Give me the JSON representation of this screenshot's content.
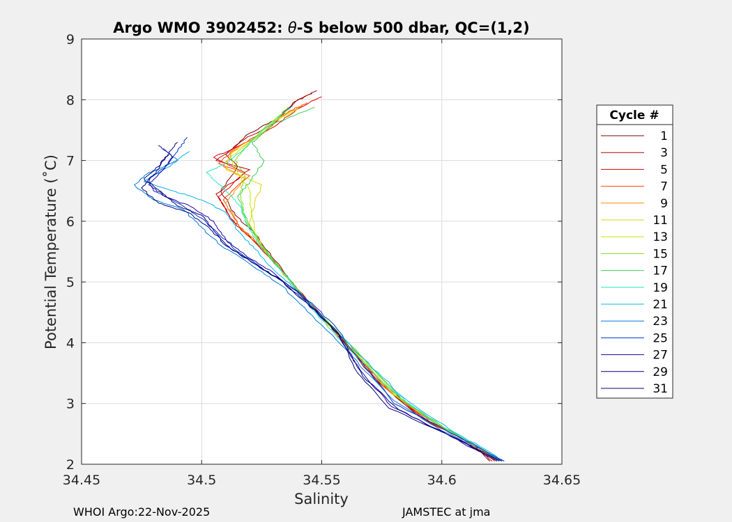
{
  "chart_data": {
    "type": "line",
    "title_prefix": "Argo WMO 3902452: ",
    "title_symbol": "θ",
    "title_suffix": "-S below 500 dbar,  QC=(1,2)",
    "xlabel": "Salinity",
    "ylabel": "Potential Temperature (˚C)",
    "xlim": [
      34.45,
      34.65
    ],
    "ylim": [
      2,
      9
    ],
    "xticks": [
      "34.45",
      "34.5",
      "34.55",
      "34.6",
      "34.65"
    ],
    "yticks": [
      "2",
      "3",
      "4",
      "5",
      "6",
      "7",
      "8",
      "9"
    ],
    "grid": true,
    "legend_placement": "outside-right",
    "legend_title": "Cycle #",
    "legend_entries": [
      "1",
      "3",
      "5",
      "7",
      "9",
      "11",
      "13",
      "15",
      "17",
      "19",
      "21",
      "23",
      "25",
      "27",
      "29",
      "31"
    ],
    "colors": [
      "#800000",
      "#b40000",
      "#e00000",
      "#ff3c00",
      "#ff8c00",
      "#e6d200",
      "#c8e600",
      "#7ddc14",
      "#3ccf50",
      "#20e6c8",
      "#00b4f0",
      "#0078dc",
      "#0032c8",
      "#1e00a0",
      "#000080",
      "#00007f"
    ],
    "series": [
      {
        "name": "1",
        "points": [
          [
            34.548,
            8.15
          ],
          [
            34.54,
            8.0
          ],
          [
            34.532,
            7.7
          ],
          [
            34.52,
            7.45
          ],
          [
            34.51,
            7.1
          ],
          [
            34.515,
            6.9
          ],
          [
            34.508,
            6.5
          ],
          [
            34.514,
            6.1
          ],
          [
            34.522,
            5.8
          ],
          [
            34.532,
            5.3
          ],
          [
            34.54,
            4.85
          ],
          [
            34.555,
            4.2
          ],
          [
            34.572,
            3.4
          ],
          [
            34.59,
            2.8
          ],
          [
            34.61,
            2.4
          ],
          [
            34.62,
            2.05
          ]
        ]
      },
      {
        "name": "3",
        "points": [
          [
            34.546,
            8.1
          ],
          [
            34.538,
            7.95
          ],
          [
            34.53,
            7.6
          ],
          [
            34.518,
            7.35
          ],
          [
            34.506,
            7.0
          ],
          [
            34.52,
            6.85
          ],
          [
            34.506,
            6.45
          ],
          [
            34.512,
            6.05
          ],
          [
            34.52,
            5.75
          ],
          [
            34.533,
            5.2
          ],
          [
            34.543,
            4.75
          ],
          [
            34.557,
            4.1
          ],
          [
            34.575,
            3.35
          ],
          [
            34.592,
            2.75
          ],
          [
            34.612,
            2.35
          ],
          [
            34.621,
            2.05
          ]
        ]
      },
      {
        "name": "5",
        "points": [
          [
            34.55,
            8.05
          ],
          [
            34.54,
            7.85
          ],
          [
            34.53,
            7.55
          ],
          [
            34.516,
            7.25
          ],
          [
            34.505,
            7.05
          ],
          [
            34.518,
            6.8
          ],
          [
            34.507,
            6.4
          ],
          [
            34.513,
            6.0
          ],
          [
            34.521,
            5.7
          ],
          [
            34.534,
            5.15
          ],
          [
            34.544,
            4.7
          ],
          [
            34.558,
            4.05
          ],
          [
            34.575,
            3.3
          ],
          [
            34.594,
            2.72
          ],
          [
            34.613,
            2.32
          ],
          [
            34.622,
            2.05
          ]
        ]
      },
      {
        "name": "7",
        "points": [
          [
            34.544,
            7.95
          ],
          [
            34.536,
            7.8
          ],
          [
            34.527,
            7.5
          ],
          [
            34.514,
            7.2
          ],
          [
            34.507,
            6.95
          ],
          [
            34.52,
            6.75
          ],
          [
            34.509,
            6.35
          ],
          [
            34.515,
            5.95
          ],
          [
            34.523,
            5.65
          ],
          [
            34.535,
            5.1
          ],
          [
            34.545,
            4.65
          ],
          [
            34.56,
            4.0
          ],
          [
            34.577,
            3.25
          ],
          [
            34.595,
            2.7
          ],
          [
            34.614,
            2.3
          ],
          [
            34.622,
            2.05
          ]
        ]
      },
      {
        "name": "9",
        "points": [
          [
            34.542,
            7.9
          ],
          [
            34.534,
            7.75
          ],
          [
            34.525,
            7.45
          ],
          [
            34.513,
            7.15
          ],
          [
            34.509,
            6.9
          ],
          [
            34.518,
            6.7
          ],
          [
            34.51,
            6.3
          ],
          [
            34.516,
            5.9
          ],
          [
            34.524,
            5.6
          ],
          [
            34.536,
            5.05
          ],
          [
            34.546,
            4.6
          ],
          [
            34.561,
            3.95
          ],
          [
            34.578,
            3.2
          ],
          [
            34.597,
            2.68
          ],
          [
            34.615,
            2.28
          ],
          [
            34.623,
            2.05
          ]
        ]
      },
      {
        "name": "11",
        "points": [
          [
            34.54,
            7.85
          ],
          [
            34.532,
            7.7
          ],
          [
            34.524,
            7.4
          ],
          [
            34.512,
            7.1
          ],
          [
            34.51,
            6.85
          ],
          [
            34.525,
            6.6
          ],
          [
            34.522,
            6.3
          ],
          [
            34.52,
            5.95
          ],
          [
            34.526,
            5.55
          ],
          [
            34.537,
            5.0
          ],
          [
            34.547,
            4.55
          ],
          [
            34.562,
            3.9
          ],
          [
            34.58,
            3.15
          ],
          [
            34.598,
            2.65
          ],
          [
            34.616,
            2.26
          ],
          [
            34.623,
            2.05
          ]
        ]
      },
      {
        "name": "13",
        "points": [
          [
            34.538,
            7.8
          ],
          [
            34.53,
            7.65
          ],
          [
            34.522,
            7.35
          ],
          [
            34.512,
            7.05
          ],
          [
            34.515,
            6.8
          ],
          [
            34.52,
            6.5
          ],
          [
            34.521,
            6.1
          ],
          [
            34.523,
            5.7
          ],
          [
            34.528,
            5.45
          ],
          [
            34.538,
            4.95
          ],
          [
            34.548,
            4.5
          ],
          [
            34.564,
            3.85
          ],
          [
            34.581,
            3.12
          ],
          [
            34.6,
            2.62
          ],
          [
            34.617,
            2.24
          ],
          [
            34.624,
            2.05
          ]
        ]
      },
      {
        "name": "15",
        "points": [
          [
            34.536,
            7.88
          ],
          [
            34.528,
            7.6
          ],
          [
            34.52,
            7.3
          ],
          [
            34.514,
            7.0
          ],
          [
            34.518,
            6.75
          ],
          [
            34.516,
            6.45
          ],
          [
            34.518,
            6.05
          ],
          [
            34.524,
            5.65
          ],
          [
            34.529,
            5.4
          ],
          [
            34.539,
            4.9
          ],
          [
            34.55,
            4.45
          ],
          [
            34.566,
            3.8
          ],
          [
            34.582,
            3.1
          ],
          [
            34.601,
            2.6
          ],
          [
            34.618,
            2.22
          ],
          [
            34.624,
            2.05
          ]
        ]
      },
      {
        "name": "17",
        "points": [
          [
            34.547,
            7.88
          ],
          [
            34.53,
            7.6
          ],
          [
            34.521,
            7.3
          ],
          [
            34.526,
            7.0
          ],
          [
            34.52,
            6.65
          ],
          [
            34.515,
            6.4
          ],
          [
            34.519,
            6.0
          ],
          [
            34.525,
            5.6
          ],
          [
            34.53,
            5.35
          ],
          [
            34.54,
            4.88
          ],
          [
            34.551,
            4.4
          ],
          [
            34.567,
            3.75
          ],
          [
            34.583,
            3.08
          ],
          [
            34.602,
            2.58
          ],
          [
            34.619,
            2.2
          ],
          [
            34.625,
            2.05
          ]
        ]
      },
      {
        "name": "19",
        "points": [
          [
            34.538,
            7.9
          ],
          [
            34.527,
            7.55
          ],
          [
            34.518,
            7.2
          ],
          [
            34.51,
            6.95
          ],
          [
            34.502,
            6.8
          ],
          [
            34.51,
            6.5
          ],
          [
            34.516,
            6.25
          ],
          [
            34.52,
            5.85
          ],
          [
            34.526,
            5.5
          ],
          [
            34.535,
            5.1
          ],
          [
            34.546,
            4.55
          ],
          [
            34.56,
            3.95
          ],
          [
            34.578,
            3.25
          ],
          [
            34.598,
            2.65
          ],
          [
            34.617,
            2.25
          ],
          [
            34.624,
            2.05
          ]
        ]
      },
      {
        "name": "21",
        "points": [
          [
            34.495,
            7.15
          ],
          [
            34.488,
            6.95
          ],
          [
            34.476,
            6.65
          ],
          [
            34.488,
            6.5
          ],
          [
            34.5,
            6.35
          ],
          [
            34.51,
            6.15
          ],
          [
            34.515,
            5.85
          ],
          [
            34.522,
            5.55
          ],
          [
            34.53,
            5.2
          ],
          [
            34.54,
            4.85
          ],
          [
            34.552,
            4.35
          ],
          [
            34.567,
            3.75
          ],
          [
            34.584,
            3.1
          ],
          [
            34.603,
            2.58
          ],
          [
            34.62,
            2.2
          ],
          [
            34.625,
            2.05
          ]
        ]
      },
      {
        "name": "23",
        "points": [
          [
            34.484,
            7.2
          ],
          [
            34.49,
            7.0
          ],
          [
            34.478,
            6.8
          ],
          [
            34.472,
            6.6
          ],
          [
            34.48,
            6.35
          ],
          [
            34.492,
            6.2
          ],
          [
            34.5,
            5.9
          ],
          [
            34.508,
            5.6
          ],
          [
            34.52,
            5.3
          ],
          [
            34.533,
            4.95
          ],
          [
            34.546,
            4.45
          ],
          [
            34.562,
            3.8
          ],
          [
            34.58,
            3.05
          ],
          [
            34.6,
            2.55
          ],
          [
            34.618,
            2.22
          ],
          [
            34.626,
            2.05
          ]
        ]
      },
      {
        "name": "25",
        "points": [
          [
            34.494,
            7.38
          ],
          [
            34.49,
            7.15
          ],
          [
            34.485,
            6.9
          ],
          [
            34.478,
            6.7
          ],
          [
            34.48,
            6.5
          ],
          [
            34.49,
            6.3
          ],
          [
            34.5,
            6.05
          ],
          [
            34.508,
            5.75
          ],
          [
            34.515,
            5.5
          ],
          [
            34.526,
            5.2
          ],
          [
            34.54,
            4.85
          ],
          [
            34.555,
            4.3
          ],
          [
            34.568,
            3.6
          ],
          [
            34.58,
            3.0
          ],
          [
            34.6,
            2.6
          ],
          [
            34.626,
            2.05
          ]
        ]
      },
      {
        "name": "27",
        "points": [
          [
            34.482,
            7.25
          ],
          [
            34.488,
            7.05
          ],
          [
            34.484,
            6.85
          ],
          [
            34.478,
            6.6
          ],
          [
            34.485,
            6.4
          ],
          [
            34.495,
            6.25
          ],
          [
            34.505,
            6.0
          ],
          [
            34.51,
            5.7
          ],
          [
            34.518,
            5.45
          ],
          [
            34.53,
            5.15
          ],
          [
            34.542,
            4.75
          ],
          [
            34.556,
            4.2
          ],
          [
            34.566,
            3.55
          ],
          [
            34.579,
            2.95
          ],
          [
            34.602,
            2.5
          ],
          [
            34.624,
            2.05
          ]
        ]
      },
      {
        "name": "29",
        "points": [
          [
            34.486,
            7.1
          ],
          [
            34.482,
            6.9
          ],
          [
            34.476,
            6.7
          ],
          [
            34.484,
            6.45
          ],
          [
            34.49,
            6.25
          ],
          [
            34.5,
            6.1
          ],
          [
            34.506,
            5.8
          ],
          [
            34.512,
            5.55
          ],
          [
            34.522,
            5.3
          ],
          [
            34.534,
            5.0
          ],
          [
            34.545,
            4.6
          ],
          [
            34.558,
            4.1
          ],
          [
            34.567,
            3.45
          ],
          [
            34.582,
            2.9
          ],
          [
            34.604,
            2.45
          ],
          [
            34.623,
            2.05
          ]
        ]
      },
      {
        "name": "31",
        "points": [
          [
            34.49,
            7.3
          ],
          [
            34.485,
            7.05
          ],
          [
            34.48,
            6.75
          ],
          [
            34.475,
            6.55
          ],
          [
            34.482,
            6.3
          ],
          [
            34.494,
            6.15
          ],
          [
            34.503,
            5.9
          ],
          [
            34.51,
            5.6
          ],
          [
            34.52,
            5.35
          ],
          [
            34.532,
            5.05
          ],
          [
            34.544,
            4.65
          ],
          [
            34.557,
            4.15
          ],
          [
            34.565,
            3.5
          ],
          [
            34.578,
            2.92
          ],
          [
            34.603,
            2.48
          ],
          [
            34.625,
            2.05
          ]
        ]
      }
    ]
  },
  "footer": {
    "left": "WHOI Argo:22-Nov-2025",
    "right": "JAMSTEC at jma"
  }
}
